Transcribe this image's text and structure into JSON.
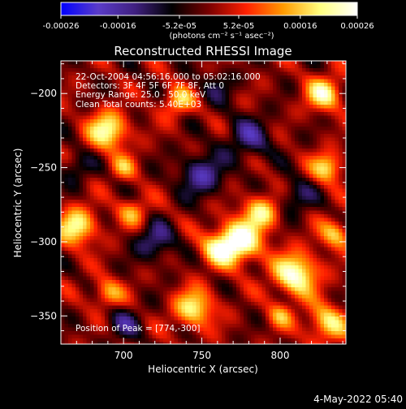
{
  "colorbar": {
    "ticks": [
      -0.00026,
      -0.00016,
      -5.2e-05,
      5.2e-05,
      0.00016,
      0.00026
    ],
    "tick_labels": [
      "-0.00026",
      "-0.00016",
      "-5.2e-05",
      "5.2e-05",
      "0.00016",
      "0.00026"
    ],
    "range": [
      -0.00026,
      0.00026
    ],
    "units_label": "(photons cm⁻² s⁻¹ asec⁻²)",
    "palette": [
      "#0000ff",
      "#5a3cc8",
      "#402080",
      "#000000",
      "#7a0000",
      "#ff2000",
      "#ff9a00",
      "#ffff80",
      "#ffffff"
    ]
  },
  "chart_data": {
    "type": "heatmap",
    "title": "Reconstructed RHESSI Image",
    "xlabel": "Heliocentric X (arcsec)",
    "ylabel": "Heliocentric Y (arcsec)",
    "xlim": [
      660,
      842
    ],
    "ylim": [
      -369,
      -178
    ],
    "x_ticks": [
      700,
      750,
      800
    ],
    "y_ticks": [
      -200,
      -250,
      -300,
      -350
    ],
    "x_tick_labels": [
      "700",
      "750",
      "800"
    ],
    "y_tick_labels": [
      "−200",
      "−250",
      "−300",
      "−350"
    ],
    "peak_position": [
      774,
      -300
    ],
    "annotations": [
      "22-Oct-2004 04:56:16.000 to 05:02:16.000",
      "Detectors: 3F 4F 5F 6F 7F 8F, Att 0",
      "Energy Range: 25.0 - 50.0 keV",
      "Clean    Total counts: 5.40E+03"
    ],
    "peak_label": "Position of Peak = [774,-300]"
  },
  "footer": {
    "date": "4-May-2022 05:40"
  }
}
